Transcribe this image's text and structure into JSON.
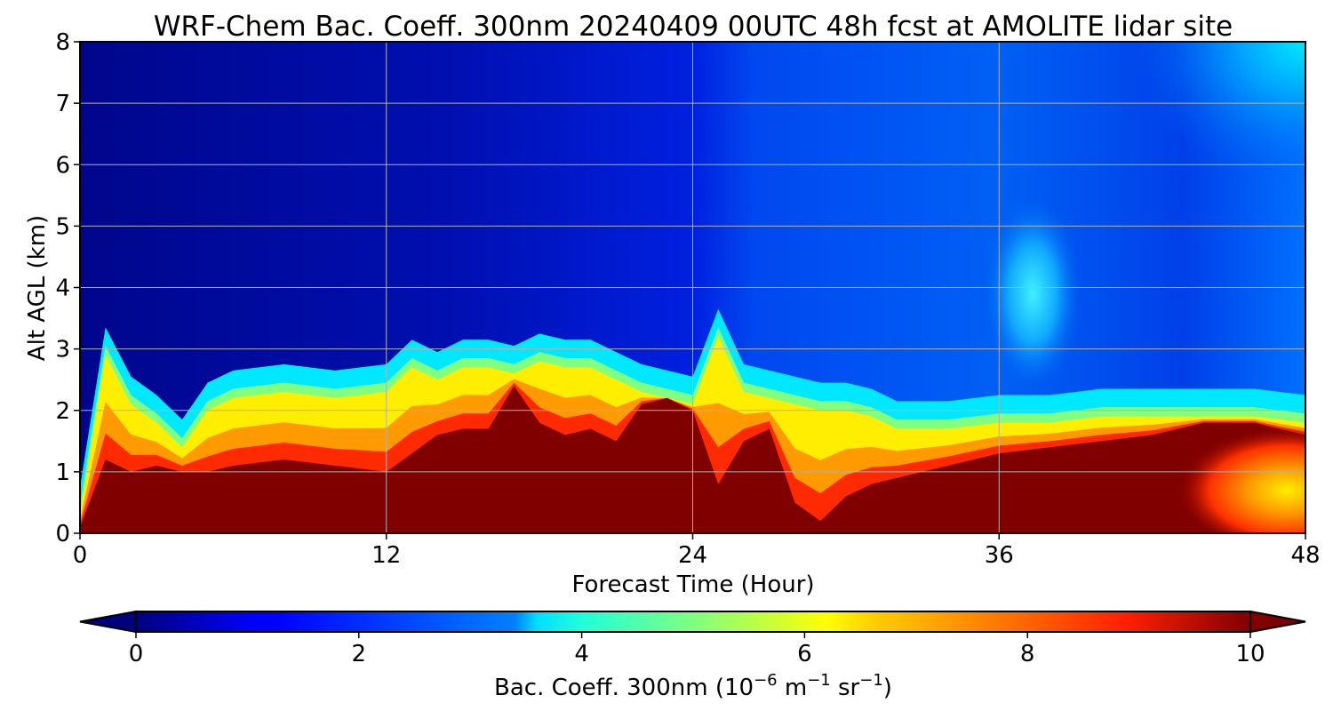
{
  "chart_data": {
    "type": "heatmap",
    "title": "WRF-Chem Bac. Coeff. 300nm  20240409 00UTC 48h fcst at AMOLITE lidar site",
    "xlabel": "Forecast Time (Hour)",
    "ylabel": "Alt AGL (km)",
    "xlim": [
      0,
      48
    ],
    "ylim": [
      0,
      8
    ],
    "xticks": [
      0,
      12,
      24,
      36,
      48
    ],
    "yticks": [
      0,
      1,
      2,
      3,
      4,
      5,
      6,
      7,
      8
    ],
    "grid": true,
    "colormap": "jet",
    "colorbar": {
      "label_main": "Bac. Coeff. 300nm  (10",
      "exp1": "−6",
      "mid1": " m",
      "exp2": "−1",
      "mid2": " sr",
      "exp3": "−1",
      "tail": ")",
      "ticks": [
        0,
        2,
        4,
        6,
        8,
        10
      ],
      "range": [
        0,
        10
      ],
      "extend": "both",
      "orientation": "horizontal"
    },
    "boundary_layer_top_km": {
      "hours": [
        0,
        1,
        2,
        3,
        4,
        5,
        6,
        8,
        10,
        12,
        13,
        14,
        15,
        16,
        17,
        18,
        19,
        20,
        21,
        22,
        23,
        24,
        25,
        26,
        27,
        28,
        29,
        30,
        31,
        32,
        34,
        36,
        38,
        40,
        42,
        44,
        46,
        48
      ],
      "values": [
        0.3,
        2.9,
        2.1,
        1.8,
        1.4,
        2.0,
        2.2,
        2.3,
        2.2,
        2.3,
        2.7,
        2.5,
        2.7,
        2.7,
        2.6,
        2.8,
        2.7,
        2.7,
        2.5,
        2.3,
        2.2,
        2.1,
        3.2,
        2.3,
        2.2,
        2.1,
        2.0,
        2.0,
        1.9,
        1.7,
        1.7,
        1.8,
        1.8,
        1.9,
        1.9,
        1.9,
        1.9,
        1.8
      ]
    },
    "saturated_layer_top_km": {
      "hours": [
        0,
        1,
        2,
        3,
        4,
        5,
        6,
        8,
        10,
        12,
        13,
        14,
        15,
        16,
        17,
        18,
        19,
        20,
        21,
        22,
        23,
        24,
        25,
        26,
        27,
        28,
        29,
        30,
        31,
        32,
        34,
        36,
        38,
        40,
        42,
        44,
        46,
        48
      ],
      "values": [
        0.1,
        1.2,
        1.0,
        1.1,
        1.0,
        1.0,
        1.1,
        1.2,
        1.1,
        1.0,
        1.3,
        1.6,
        1.7,
        1.7,
        2.4,
        1.8,
        1.6,
        1.7,
        1.5,
        2.1,
        2.2,
        2.0,
        0.8,
        1.5,
        1.7,
        0.5,
        0.2,
        0.6,
        0.8,
        0.9,
        1.1,
        1.3,
        1.4,
        1.5,
        1.6,
        1.8,
        1.8,
        1.6
      ]
    },
    "upper_plume_max_value": 4.5
  }
}
